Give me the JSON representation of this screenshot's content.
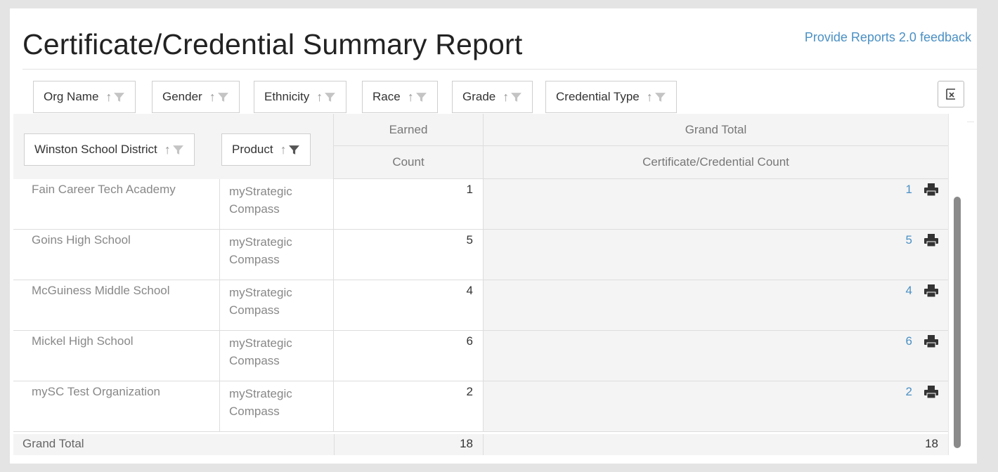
{
  "header": {
    "title": "Certificate/Credential Summary Report",
    "feedback_link": "Provide Reports 2.0 feedback"
  },
  "filters": [
    {
      "label": "Org Name"
    },
    {
      "label": "Gender"
    },
    {
      "label": "Ethnicity"
    },
    {
      "label": "Race"
    },
    {
      "label": "Grade"
    },
    {
      "label": "Credential Type"
    }
  ],
  "row_fields": [
    {
      "label": "Winston School District"
    },
    {
      "label": "Product"
    }
  ],
  "columns": {
    "earned": "Earned",
    "earned_sub": "Count",
    "grand_total": "Grand Total",
    "grand_total_sub": "Certificate/Credential Count"
  },
  "rows": [
    {
      "org": "Fain Career Tech Academy",
      "product_line1": "myStrategic",
      "product_line2": "Compass",
      "earned": "1",
      "total": "1"
    },
    {
      "org": "Goins High School",
      "product_line1": "myStrategic",
      "product_line2": "Compass",
      "earned": "5",
      "total": "5"
    },
    {
      "org": "McGuiness Middle School",
      "product_line1": "myStrategic",
      "product_line2": "Compass",
      "earned": "4",
      "total": "4"
    },
    {
      "org": "Mickel High School",
      "product_line1": "myStrategic",
      "product_line2": "Compass",
      "earned": "6",
      "total": "6"
    },
    {
      "org": "mySC Test Organization",
      "product_line1": "myStrategic",
      "product_line2": "Compass",
      "earned": "2",
      "total": "2"
    }
  ],
  "grand_total_row": {
    "label": "Grand Total",
    "earned": "18",
    "total": "18"
  },
  "colors": {
    "link": "#4a90c4",
    "header_bg": "#f4f4f4"
  }
}
